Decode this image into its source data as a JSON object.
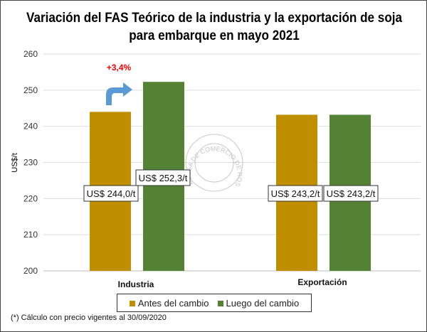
{
  "chart_data": {
    "type": "bar",
    "title": "Variación del FAS Teórico de la industria y la exportación de soja para embarque en mayo 2021",
    "ylabel": "US$/t",
    "ylim": [
      200,
      260
    ],
    "yticks": [
      200,
      210,
      220,
      230,
      240,
      250,
      260
    ],
    "grid": true,
    "categories": [
      "Industria",
      "Exportación"
    ],
    "series": [
      {
        "name": "Antes del cambio",
        "color": "#BF8F00",
        "values": [
          244.0,
          243.2
        ],
        "labels": [
          "US$ 244,0/t",
          "US$ 243,2/t"
        ]
      },
      {
        "name": "Luego del cambio",
        "color": "#548235",
        "values": [
          252.3,
          243.2
        ],
        "labels": [
          "US$ 252,3/t",
          "US$ 243,2/t"
        ]
      }
    ],
    "annotation": "+3,4%",
    "annotation_color": "#FF0000",
    "arrow_color": "#5B9BD5",
    "legend_position": "bottom",
    "note": "(*) Cálculo con precio vigentes al 30/09/2020"
  },
  "watermark": "BOLSA DE COMERCIO DE ROSARIO"
}
